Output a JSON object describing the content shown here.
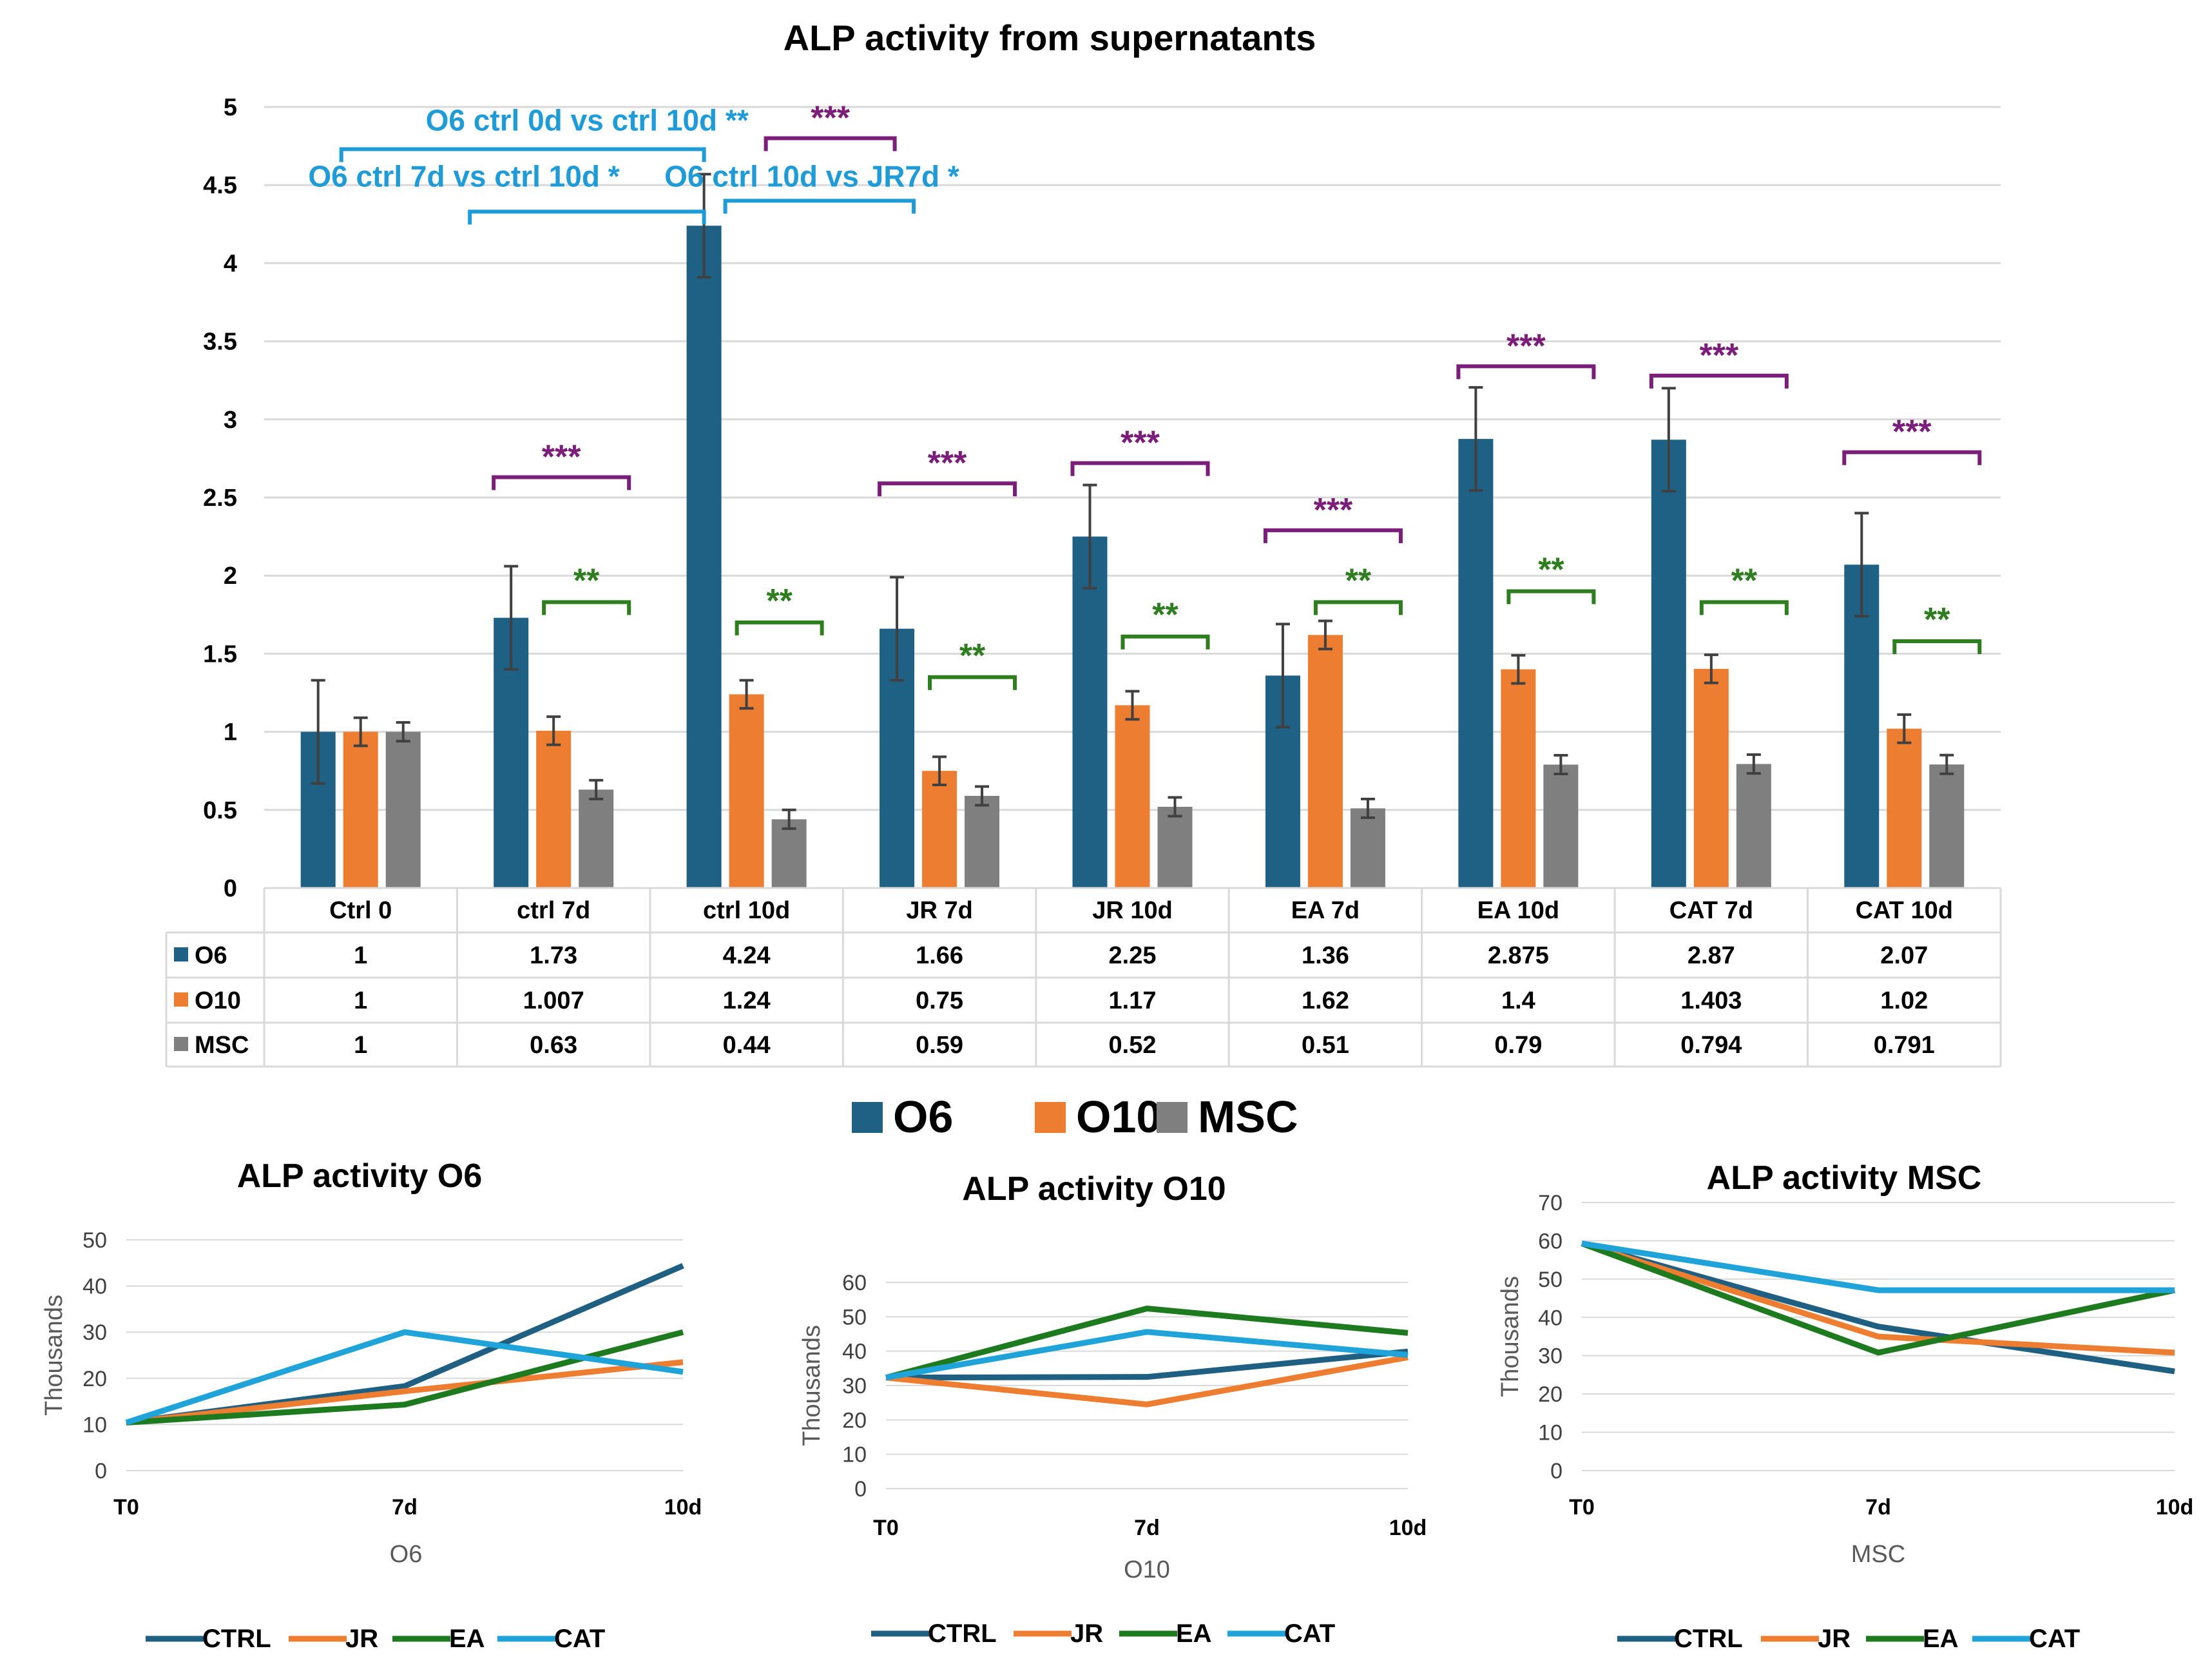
{
  "colors": {
    "O6": "#1f6085",
    "O10": "#ed7d31",
    "MSC": "#7f7f7f",
    "CTRL": "#1f5f82",
    "JR": "#ed7d31",
    "EA": "#1e7a1e",
    "CAT": "#1fa3d9",
    "purple": "#7b1e7a",
    "green": "#2e7d1f",
    "blue": "#1f9bd7"
  },
  "chart_data": [
    {
      "type": "bar",
      "title": "ALP activity from supernatants",
      "categories": [
        "Ctrl 0",
        "ctrl 7d",
        "ctrl 10d",
        "JR 7d",
        "JR 10d",
        "EA 7d",
        "EA 10d",
        "CAT 7d",
        "CAT 10d"
      ],
      "ylim": [
        0,
        5
      ],
      "yticks": [
        "0",
        "0.5",
        "1",
        "1.5",
        "2",
        "2.5",
        "3",
        "3.5",
        "4",
        "4.5",
        "5"
      ],
      "series": [
        {
          "name": "O6",
          "values": [
            1,
            1.73,
            4.24,
            1.66,
            2.25,
            1.36,
            2.875,
            2.87,
            2.07
          ],
          "labels": [
            "1",
            "1.73",
            "4.24",
            "1.66",
            "2.25",
            "1.36",
            "2.875",
            "2.87",
            "2.07"
          ],
          "errors": [
            0.33,
            0.33,
            0.33,
            0.33,
            0.33,
            0.33,
            0.33,
            0.33,
            0.33
          ]
        },
        {
          "name": "O10",
          "values": [
            1,
            1.007,
            1.24,
            0.75,
            1.17,
            1.62,
            1.4,
            1.403,
            1.02
          ],
          "labels": [
            "1",
            "1.007",
            "1.24",
            "0.75",
            "1.17",
            "1.62",
            "1.4",
            "1.403",
            "1.02"
          ],
          "errors": [
            0.09,
            0.09,
            0.09,
            0.09,
            0.09,
            0.09,
            0.09,
            0.09,
            0.09
          ]
        },
        {
          "name": "MSC",
          "values": [
            1,
            0.63,
            0.44,
            0.59,
            0.52,
            0.51,
            0.79,
            0.794,
            0.791
          ],
          "labels": [
            "1",
            "0.63",
            "0.44",
            "0.59",
            "0.52",
            "0.51",
            "0.79",
            "0.794",
            "0.791"
          ],
          "errors": [
            0.06,
            0.06,
            0.06,
            0.06,
            0.06,
            0.06,
            0.06,
            0.06,
            0.06
          ]
        }
      ],
      "legend": [
        "O6",
        "O10",
        "MSC"
      ],
      "annotations": [
        {
          "text": "O6 ctrl 0d vs ctrl 10d **",
          "color": "blue",
          "from": 0,
          "to": 2,
          "level": 4.73,
          "textLevel": 4.85
        },
        {
          "text": "O6 ctrl 7d vs ctrl 10d *",
          "color": "blue",
          "from": 1,
          "to": 2,
          "level": 4.33,
          "textLevel": 4.49
        },
        {
          "text": "O6 ctrl 10d vs JR7d *",
          "color": "blue",
          "from": 2,
          "to": 3,
          "level": 4.4,
          "textLevel": 4.49
        },
        {
          "text": "***",
          "color": "purple",
          "group": 2,
          "level": 4.8
        },
        {
          "text": "***",
          "color": "purple",
          "group": 1,
          "level": 2.63
        },
        {
          "text": "***",
          "color": "purple",
          "group": 3,
          "level": 2.59
        },
        {
          "text": "***",
          "color": "purple",
          "group": 4,
          "level": 2.72
        },
        {
          "text": "***",
          "color": "purple",
          "group": 5,
          "level": 2.29
        },
        {
          "text": "***",
          "color": "purple",
          "group": 6,
          "level": 3.34
        },
        {
          "text": "***",
          "color": "purple",
          "group": 7,
          "level": 3.28
        },
        {
          "text": "***",
          "color": "purple",
          "group": 8,
          "level": 2.79
        },
        {
          "text": "**",
          "color": "green",
          "group": 1,
          "level": 1.83
        },
        {
          "text": "**",
          "color": "green",
          "group": 2,
          "level": 1.7
        },
        {
          "text": "**",
          "color": "green",
          "group": 3,
          "level": 1.35
        },
        {
          "text": "**",
          "color": "green",
          "group": 4,
          "level": 1.61
        },
        {
          "text": "**",
          "color": "green",
          "group": 5,
          "level": 1.83
        },
        {
          "text": "**",
          "color": "green",
          "group": 6,
          "level": 1.9
        },
        {
          "text": "**",
          "color": "green",
          "group": 7,
          "level": 1.83
        },
        {
          "text": "**",
          "color": "green",
          "group": 8,
          "level": 1.58
        }
      ]
    },
    {
      "type": "line",
      "title": "ALP activity O6",
      "xlabel": "O6",
      "ylabel": "Thousands",
      "x": [
        "T0",
        "7d",
        "10d"
      ],
      "ylim": [
        0,
        50
      ],
      "yticks": [
        "0",
        "10",
        "20",
        "30",
        "40",
        "50"
      ],
      "series": [
        {
          "name": "CTRL",
          "values": [
            10.4,
            18.3,
            44.4
          ]
        },
        {
          "name": "JR",
          "values": [
            10.4,
            17.2,
            23.5
          ]
        },
        {
          "name": "EA",
          "values": [
            10.4,
            14.3,
            30.0
          ]
        },
        {
          "name": "CAT",
          "values": [
            10.4,
            30.0,
            21.4
          ]
        }
      ]
    },
    {
      "type": "line",
      "title": "ALP activity O10",
      "xlabel": "O10",
      "ylabel": "Thousands",
      "x": [
        "T0",
        "7d",
        "10d"
      ],
      "ylim": [
        0,
        60
      ],
      "yticks": [
        "0",
        "10",
        "20",
        "30",
        "40",
        "50",
        "60"
      ],
      "series": [
        {
          "name": "CTRL",
          "values": [
            32.3,
            32.5,
            39.9
          ]
        },
        {
          "name": "JR",
          "values": [
            32.3,
            24.5,
            38.2
          ]
        },
        {
          "name": "EA",
          "values": [
            32.3,
            52.4,
            45.3
          ]
        },
        {
          "name": "CAT",
          "values": [
            32.3,
            45.6,
            38.9
          ]
        }
      ]
    },
    {
      "type": "line",
      "title": "ALP activity MSC",
      "xlabel": "MSC",
      "ylabel": "Thousands",
      "x": [
        "T0",
        "7d",
        "10d"
      ],
      "ylim": [
        0,
        70
      ],
      "yticks": [
        "0",
        "10",
        "20",
        "30",
        "40",
        "50",
        "60",
        "70"
      ],
      "series": [
        {
          "name": "CTRL",
          "values": [
            59.3,
            37.6,
            25.9
          ]
        },
        {
          "name": "JR",
          "values": [
            59.3,
            35.0,
            30.8
          ]
        },
        {
          "name": "EA",
          "values": [
            59.3,
            30.8,
            47.1
          ]
        },
        {
          "name": "CAT",
          "values": [
            59.3,
            47.1,
            47.1
          ]
        }
      ]
    }
  ]
}
